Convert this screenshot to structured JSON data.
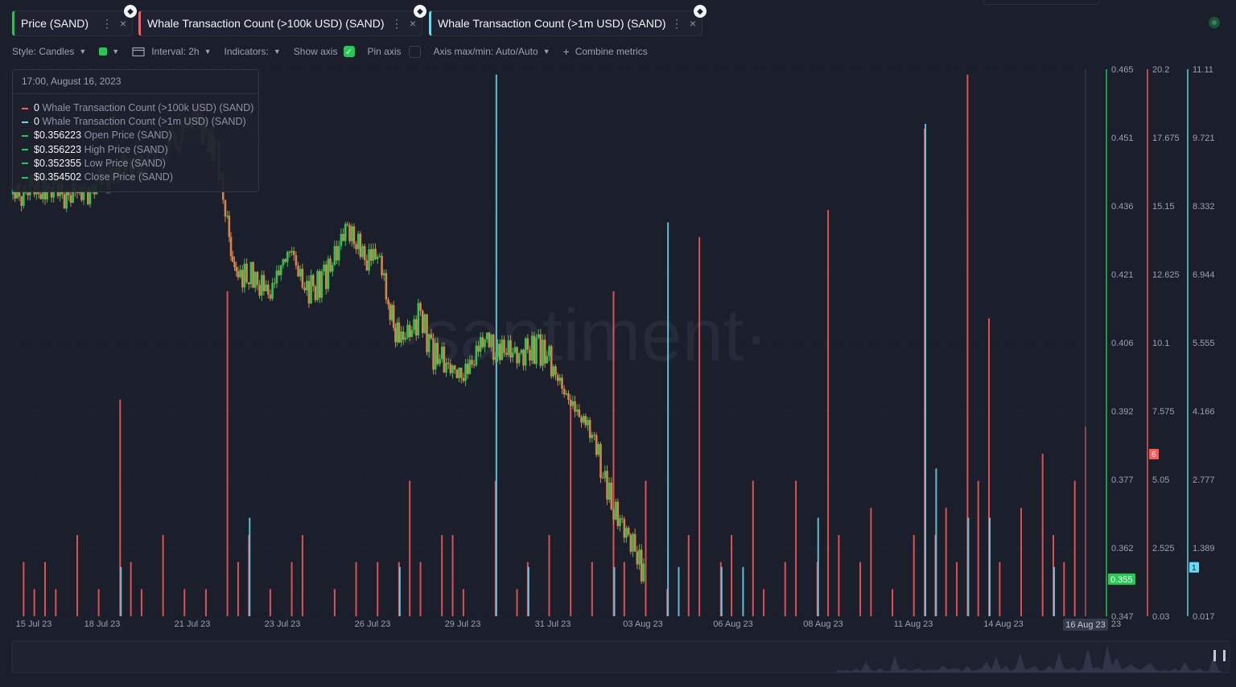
{
  "tabs": [
    {
      "label": "Price (SAND)",
      "color": "#26c953"
    },
    {
      "label": "Whale Transaction Count (>100k USD) (SAND)",
      "color": "#ff5b5b"
    },
    {
      "label": "Whale Transaction Count (>1m USD) (SAND)",
      "color": "#68dbf4"
    }
  ],
  "icons": {
    "tab_menu": "⋮",
    "tab_close": "×",
    "token_badge": "◆"
  },
  "toolbar": {
    "style_label": "Style: Candles",
    "interval_label": "Interval: 2h",
    "indicators_label": "Indicators:",
    "show_axis_label": "Show axis",
    "pin_axis_label": "Pin axis",
    "axis_label": "Axis max/min: Auto/Auto",
    "combine_label": "Combine metrics",
    "color_swatch": "#26c953"
  },
  "tooltip": {
    "title": "17:00, August 16, 2023",
    "rows": [
      {
        "value": "0",
        "name": "Whale Transaction Count (>100k USD) (SAND)",
        "color": "#ff5b5b"
      },
      {
        "value": "0",
        "name": "Whale Transaction Count (>1m USD) (SAND)",
        "color": "#68dbf4"
      },
      {
        "value": "$0.356223",
        "name": "Open Price (SAND)",
        "color": "#26c953"
      },
      {
        "value": "$0.356223",
        "name": "High Price (SAND)",
        "color": "#26c953"
      },
      {
        "value": "$0.352355",
        "name": "Low Price (SAND)",
        "color": "#26c953"
      },
      {
        "value": "$0.354502",
        "name": "Close Price (SAND)",
        "color": "#26c953"
      }
    ]
  },
  "chart_data": {
    "type": "line",
    "watermark": "·santiment·",
    "x_labels": [
      "15 Jul 23",
      "18 Jul 23",
      "21 Jul 23",
      "23 Jul 23",
      "26 Jul 23",
      "29 Jul 23",
      "31 Jul 23",
      "03 Aug 23",
      "06 Aug 23",
      "08 Aug 23",
      "11 Aug 23",
      "14 Aug 23",
      "23"
    ],
    "hover_x_label": "16 Aug 23",
    "axes": [
      {
        "metric": "Price (SAND)",
        "color": "#26c953",
        "ticks": [
          "0.465",
          "0.451",
          "0.436",
          "0.421",
          "0.406",
          "0.392",
          "0.377",
          "0.362",
          "0.347"
        ],
        "current": "0.355"
      },
      {
        "metric": "Whale Transaction Count (>100k USD) (SAND)",
        "color": "#ff5b5b",
        "ticks": [
          "20.2",
          "17.675",
          "15.15",
          "12.625",
          "10.1",
          "7.575",
          "5.05",
          "2.525",
          "0.03"
        ],
        "current": "6"
      },
      {
        "metric": "Whale Transaction Count (>1m USD) (SAND)",
        "color": "#68dbf4",
        "ticks": [
          "11.11",
          "9.721",
          "8.332",
          "6.944",
          "5.555",
          "4.166",
          "2.777",
          "1.389",
          "0.017"
        ],
        "current": "1"
      }
    ],
    "price_series": {
      "name": "Price (SAND)",
      "color_up": "#26c953",
      "color_down": "#d9834a",
      "points": [
        [
          0,
          0.438
        ],
        [
          3,
          0.44
        ],
        [
          6,
          0.437
        ],
        [
          9,
          0.443
        ],
        [
          12,
          0.445
        ],
        [
          14,
          0.447
        ],
        [
          16,
          0.452
        ],
        [
          17,
          0.455
        ],
        [
          18,
          0.45
        ],
        [
          19,
          0.447
        ],
        [
          20,
          0.431
        ],
        [
          20.5,
          0.422
        ],
        [
          21,
          0.42
        ],
        [
          22,
          0.421
        ],
        [
          23,
          0.419
        ],
        [
          24,
          0.417
        ],
        [
          25,
          0.423
        ],
        [
          26,
          0.426
        ],
        [
          27,
          0.418
        ],
        [
          28,
          0.417
        ],
        [
          29,
          0.42
        ],
        [
          30,
          0.424
        ],
        [
          31,
          0.431
        ],
        [
          32,
          0.428
        ],
        [
          33,
          0.424
        ],
        [
          34,
          0.426
        ],
        [
          35,
          0.415
        ],
        [
          35.5,
          0.41
        ],
        [
          36,
          0.407
        ],
        [
          37,
          0.408
        ],
        [
          38,
          0.412
        ],
        [
          39,
          0.404
        ],
        [
          40,
          0.402
        ],
        [
          41,
          0.4
        ],
        [
          42,
          0.399
        ],
        [
          43,
          0.403
        ],
        [
          44,
          0.408
        ],
        [
          45,
          0.404
        ],
        [
          46,
          0.405
        ],
        [
          47,
          0.403
        ],
        [
          48,
          0.404
        ],
        [
          49,
          0.405
        ],
        [
          50,
          0.402
        ],
        [
          51,
          0.397
        ],
        [
          52,
          0.393
        ],
        [
          53,
          0.39
        ],
        [
          54,
          0.387
        ],
        [
          55,
          0.378
        ],
        [
          56,
          0.37
        ],
        [
          57,
          0.366
        ],
        [
          58,
          0.361
        ],
        [
          59,
          0.355
        ]
      ]
    },
    "bar_series": [
      {
        "name": "Whale Transaction Count (>100k USD) (SAND)",
        "color": "#ff5b5b",
        "values": [
          [
            1,
            2
          ],
          [
            2,
            1
          ],
          [
            3,
            2
          ],
          [
            4,
            1
          ],
          [
            6,
            3
          ],
          [
            8,
            1
          ],
          [
            10,
            8
          ],
          [
            11,
            2
          ],
          [
            12,
            1
          ],
          [
            14,
            3
          ],
          [
            16,
            1
          ],
          [
            18,
            1
          ],
          [
            20,
            12
          ],
          [
            21,
            2
          ],
          [
            22,
            3
          ],
          [
            24,
            1
          ],
          [
            26,
            2
          ],
          [
            27,
            3
          ],
          [
            30,
            1
          ],
          [
            32,
            2
          ],
          [
            34,
            2
          ],
          [
            36,
            2
          ],
          [
            37,
            5
          ],
          [
            38,
            2
          ],
          [
            40,
            3
          ],
          [
            41,
            3
          ],
          [
            42,
            1
          ],
          [
            45,
            5
          ],
          [
            47,
            1
          ],
          [
            48,
            2
          ],
          [
            50,
            3
          ],
          [
            52,
            8
          ],
          [
            54,
            2
          ],
          [
            56,
            12
          ],
          [
            57,
            2
          ],
          [
            59,
            5
          ],
          [
            61,
            1
          ],
          [
            63,
            3
          ],
          [
            64,
            14
          ],
          [
            66,
            2
          ],
          [
            67,
            3
          ],
          [
            69,
            5
          ],
          [
            70,
            1
          ],
          [
            72,
            2
          ],
          [
            73,
            5
          ],
          [
            75,
            2
          ],
          [
            76,
            15
          ],
          [
            77,
            3
          ],
          [
            79,
            2
          ],
          [
            80,
            4
          ],
          [
            82,
            1
          ],
          [
            84,
            3
          ],
          [
            85,
            18
          ],
          [
            86,
            3
          ],
          [
            87,
            4
          ],
          [
            88,
            2
          ],
          [
            89,
            20
          ],
          [
            90,
            5
          ],
          [
            91,
            11
          ],
          [
            92,
            2
          ],
          [
            94,
            4
          ],
          [
            96,
            6
          ],
          [
            97,
            3
          ],
          [
            98,
            2
          ],
          [
            99,
            5
          ],
          [
            100,
            7
          ]
        ]
      },
      {
        "name": "Whale Transaction Count (>1m USD) (SAND)",
        "color": "#68dbf4",
        "values": [
          [
            10,
            1
          ],
          [
            22,
            2
          ],
          [
            36,
            1
          ],
          [
            45,
            11
          ],
          [
            48,
            1
          ],
          [
            56,
            1
          ],
          [
            61,
            8
          ],
          [
            62,
            1
          ],
          [
            66,
            1
          ],
          [
            68,
            1
          ],
          [
            75,
            2
          ],
          [
            85,
            10
          ],
          [
            86,
            3
          ],
          [
            89,
            2
          ],
          [
            91,
            2
          ],
          [
            97,
            1
          ]
        ]
      }
    ]
  }
}
